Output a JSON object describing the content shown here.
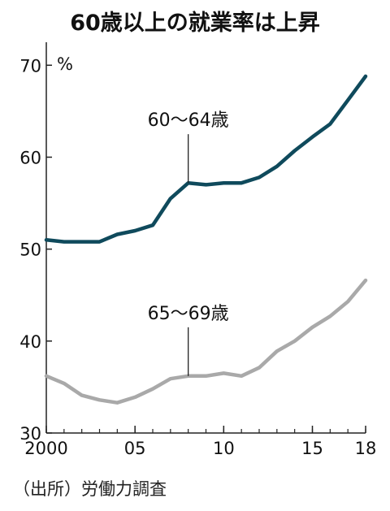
{
  "title": "60歳以上の就業率は上昇",
  "source": "（出所）労働力調査",
  "chart_data": {
    "type": "line",
    "title": "60歳以上の就業率は上昇",
    "unit_label": "%",
    "x": [
      2000,
      2001,
      2002,
      2003,
      2004,
      2005,
      2006,
      2007,
      2008,
      2009,
      2010,
      2011,
      2012,
      2013,
      2014,
      2015,
      2016,
      2017,
      2018
    ],
    "x_tick_values": [
      2000,
      2005,
      2010,
      2015,
      2018
    ],
    "x_tick_labels": [
      "2000",
      "05",
      "10",
      "15",
      "18"
    ],
    "y_ticks": [
      30,
      40,
      50,
      60,
      70
    ],
    "ylim": [
      30,
      72.5
    ],
    "grid": false,
    "series": [
      {
        "name": "60〜64歳",
        "color": "#0f4a5c",
        "values": [
          51.0,
          50.8,
          50.8,
          50.8,
          51.6,
          52.0,
          52.6,
          55.5,
          57.2,
          57.0,
          57.2,
          57.2,
          57.8,
          59.0,
          60.7,
          62.2,
          63.6,
          66.2,
          68.8
        ]
      },
      {
        "name": "65〜69歳",
        "color": "#a9a9a9",
        "values": [
          36.2,
          35.4,
          34.1,
          33.6,
          33.3,
          33.9,
          34.8,
          35.9,
          36.2,
          36.2,
          36.5,
          36.2,
          37.1,
          38.9,
          40.0,
          41.5,
          42.7,
          44.3,
          46.6
        ]
      }
    ],
    "annotations": [
      {
        "text": "60〜64歳",
        "x": 2008,
        "series": 0
      },
      {
        "text": "65〜69歳",
        "x": 2008,
        "series": 1
      }
    ]
  }
}
